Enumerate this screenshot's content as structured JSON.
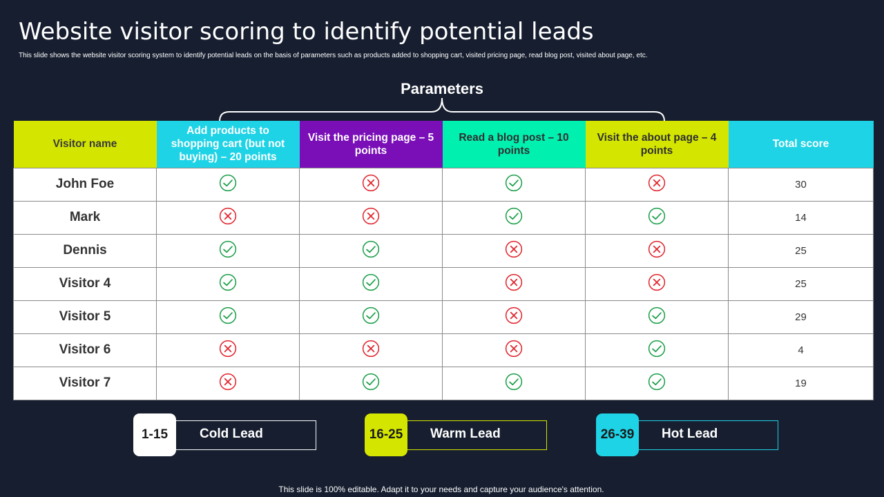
{
  "page": {
    "title": "Website visitor scoring to identify potential leads",
    "subtitle": "This slide shows the website visitor scoring system to identify potential leads on the basis of parameters such as products added to shopping cart, visited pricing page, read blog post, visited about page, etc.",
    "parameters_label": "Parameters",
    "footer": "This slide is 100% editable. Adapt it to your needs and capture your audience's attention."
  },
  "table": {
    "headers": [
      {
        "label": "Visitor name",
        "bg": "#d4e600",
        "color": "#3a3a3a"
      },
      {
        "label": "Add products to shopping cart (but not buying) – 20 points",
        "bg": "#1fd3e6",
        "color": "#ffffff"
      },
      {
        "label": "Visit the pricing page – 5 points",
        "bg": "#7a0fb8",
        "color": "#ffffff"
      },
      {
        "label": "Read a blog post – 10 points",
        "bg": "#00f0b0",
        "color": "#2f2f2f"
      },
      {
        "label": "Visit the about page – 4 points",
        "bg": "#d4e600",
        "color": "#2f2f2f"
      },
      {
        "label": "Total score",
        "bg": "#1fd3e6",
        "color": "#ffffff"
      }
    ],
    "rows": [
      {
        "name": "John Foe",
        "checks": [
          true,
          false,
          true,
          false
        ],
        "total": "30"
      },
      {
        "name": "Mark",
        "checks": [
          false,
          false,
          true,
          true
        ],
        "total": "14"
      },
      {
        "name": "Dennis",
        "checks": [
          true,
          true,
          false,
          false
        ],
        "total": "25"
      },
      {
        "name": "Visitor 4",
        "checks": [
          true,
          true,
          false,
          false
        ],
        "total": "25"
      },
      {
        "name": "Visitor 5",
        "checks": [
          true,
          true,
          false,
          true
        ],
        "total": "29"
      },
      {
        "name": "Visitor 6",
        "checks": [
          false,
          false,
          false,
          true
        ],
        "total": "4"
      },
      {
        "name": "Visitor 7",
        "checks": [
          false,
          true,
          true,
          true
        ],
        "total": "19"
      }
    ],
    "check_icon": "check-circle-icon",
    "cross_icon": "x-circle-icon",
    "check_color": "#1a9e48",
    "cross_color": "#e0242c"
  },
  "legend": [
    {
      "range": "1-15",
      "label": "Cold Lead",
      "color": "#ffffff"
    },
    {
      "range": "16-25",
      "label": "Warm Lead",
      "color": "#d4e600"
    },
    {
      "range": "26-39",
      "label": "Hot Lead",
      "color": "#1fd3e6"
    }
  ]
}
